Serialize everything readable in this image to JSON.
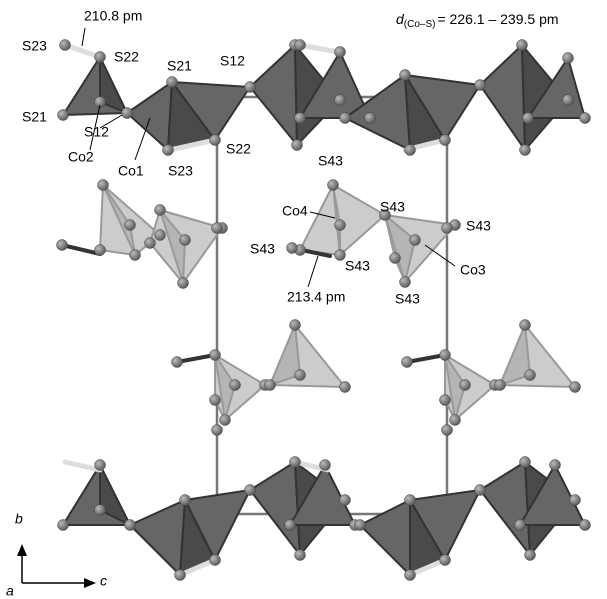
{
  "annotations": {
    "bond_top": "210.8 pm",
    "bond_middle": "213.4 pm",
    "distance": {
      "symbol": "d",
      "subscript": "(Co–S)",
      "range": "= 226.1 – 239.5 pm"
    }
  },
  "atom_labels": [
    "S23",
    "S22",
    "S21",
    "S12",
    "S21",
    "Co2",
    "S12",
    "Co1",
    "S23",
    "S22",
    "S43",
    "Co4",
    "S43",
    "S43",
    "S43",
    "S43",
    "Co3",
    "S43"
  ],
  "axes": {
    "b": "b",
    "a": "a",
    "c": "c"
  }
}
